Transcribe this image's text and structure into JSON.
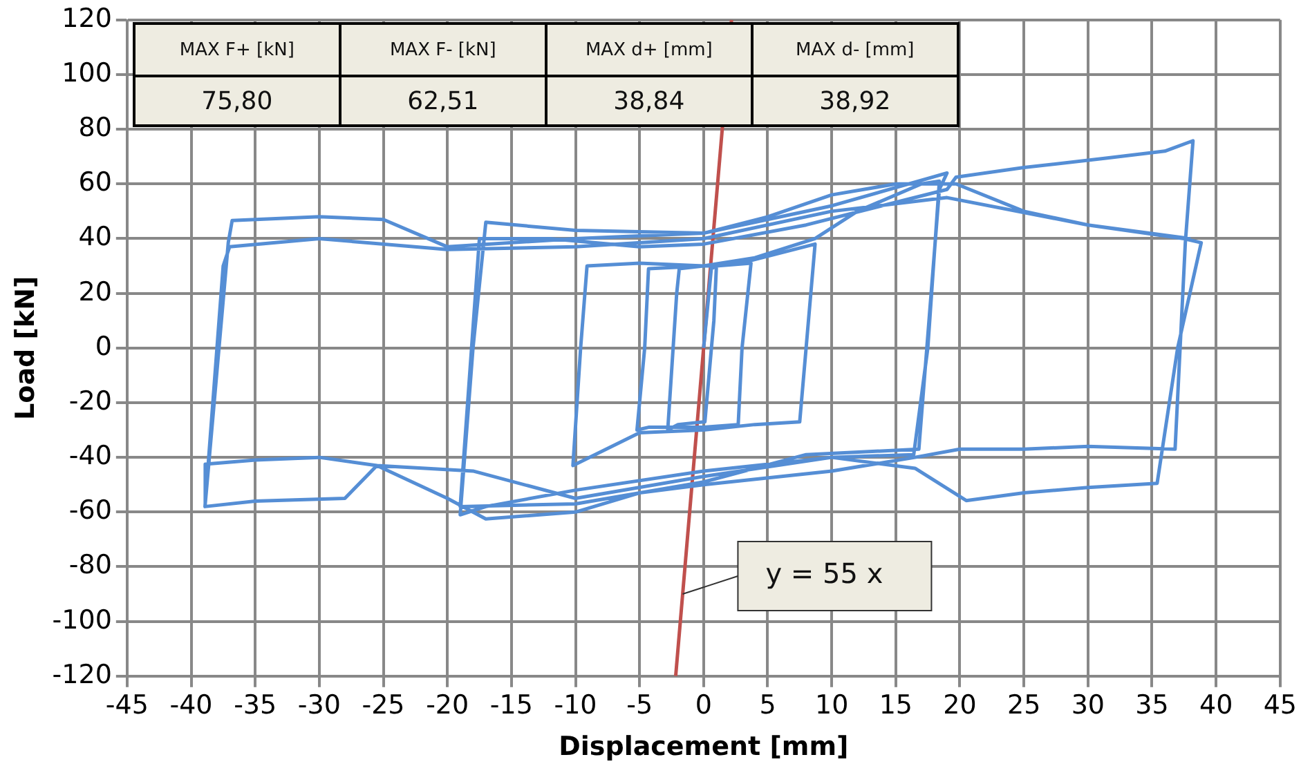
{
  "chart_data": {
    "type": "line",
    "xlabel": "Displacement [mm]",
    "ylabel": "Load [kN]",
    "xlim": [
      -45,
      45
    ],
    "xticks": [
      -45,
      -40,
      -35,
      -30,
      -25,
      -20,
      -15,
      -10,
      -5,
      0,
      5,
      10,
      15,
      20,
      25,
      30,
      35,
      40,
      45
    ],
    "ylim": [
      -120,
      120
    ],
    "yticks": [
      -120,
      -100,
      -80,
      -60,
      -40,
      -20,
      0,
      20,
      40,
      60,
      80,
      100,
      120
    ],
    "grid": true,
    "legend": false,
    "marker": "none",
    "line_style": "solid",
    "series": [
      {
        "color": "#558ed5",
        "x": [
          0,
          0.6,
          1.0,
          0.8,
          0.1,
          -2.0,
          -2.8,
          -2.1,
          -1.9,
          0,
          1.0,
          3.7,
          3.0,
          2.7,
          0,
          -4.3,
          -5.2,
          -4.6,
          -4.3,
          0,
          3.7,
          8.7,
          8.0,
          7.5,
          4,
          0,
          -5,
          -10.2,
          -9.6,
          -9.1,
          -5,
          0,
          4,
          8.7,
          12,
          17,
          18.4,
          17.5,
          16.4,
          10,
          0,
          -10,
          -17,
          -19,
          -18,
          -17,
          -10,
          0,
          10,
          19,
          18.4,
          16.8,
          8,
          0,
          -10,
          -19,
          -17.5,
          -12,
          -5,
          0,
          8,
          19,
          19.7,
          25,
          31.4,
          36,
          38.2,
          37.6,
          36.8,
          30,
          25,
          20,
          16.5,
          10,
          0,
          -5,
          -10,
          -17,
          -20,
          -25.5,
          -30,
          -35,
          -38.9,
          -38.9,
          -37.1,
          -36.8,
          -30,
          -25,
          -20,
          -10,
          0,
          5,
          10,
          15,
          19.7,
          25,
          30,
          37.5,
          38.84,
          37,
          35.4,
          30,
          25,
          20.5,
          16.5,
          10,
          0,
          -10,
          -18,
          -25.5,
          -28,
          -35,
          -38.92,
          -37.5,
          -37,
          -30,
          -20,
          -10,
          0,
          10,
          19,
          30,
          38
        ],
        "values": [
          0,
          29,
          30,
          10,
          -27,
          -28,
          -30,
          20,
          29,
          30,
          30,
          31,
          0,
          -28,
          -29,
          -29,
          -30,
          0,
          29,
          30,
          32,
          38,
          0,
          -27,
          -28,
          -30,
          -31,
          -43,
          0,
          30,
          31,
          30,
          33,
          40,
          50,
          60,
          61,
          0,
          -39,
          -40,
          -45,
          -52,
          -58,
          -61,
          0,
          46,
          43,
          42,
          52,
          64,
          58,
          -37,
          -39,
          -49,
          -57,
          -58,
          40,
          40,
          37,
          38,
          45,
          58,
          62.5,
          66,
          69.4,
          72,
          75.8,
          38.6,
          -37,
          -36,
          -37,
          -37,
          -40,
          -45,
          -50,
          -53,
          -60,
          -62.5,
          -55,
          -43,
          -40,
          -41,
          -42.5,
          -57,
          38.6,
          46.6,
          48,
          47,
          37,
          40,
          42,
          48,
          56,
          60,
          60,
          50,
          45,
          40,
          38.5,
          0,
          -49.5,
          -51,
          -53,
          -55.8,
          -44,
          -40,
          -47,
          -55,
          -45,
          -43,
          -55,
          -56,
          -58,
          30,
          37,
          40,
          36,
          37,
          40,
          50,
          55,
          45,
          40
        ]
      },
      {
        "color": "#c0504d",
        "x": [
          -2.18,
          2.18
        ],
        "values": [
          -120,
          120
        ]
      }
    ],
    "annotations": [
      "MAX F+ [kN]",
      "MAX F- [kN]",
      "MAX d+ [mm]",
      "MAX d- [mm]",
      "75,80",
      "62,51",
      "38,84",
      "38,92",
      {
        "text": "y = 55 x",
        "x": -1.64,
        "y": -90
      }
    ]
  }
}
